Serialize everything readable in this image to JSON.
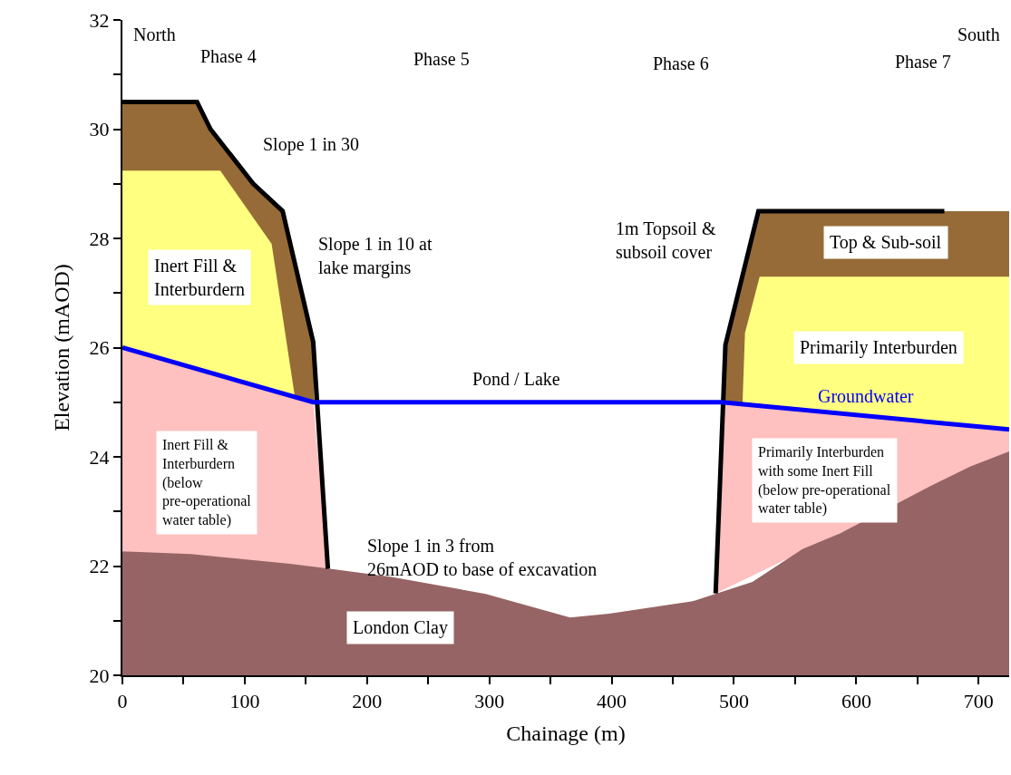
{
  "chart_data": {
    "type": "area",
    "xlabel": "Chainage (m)",
    "ylabel": "Elevation (mAOD)",
    "xlim": [
      0,
      725
    ],
    "ylim": [
      20,
      32
    ],
    "xticks": [
      0,
      {
        "value": 50,
        "label": null
      },
      100,
      {
        "value": 150,
        "label": null
      },
      200,
      {
        "value": 250,
        "label": null
      },
      300,
      {
        "value": 350,
        "label": null
      },
      400,
      {
        "value": 450,
        "label": null
      },
      500,
      {
        "value": 550,
        "label": null
      },
      600,
      {
        "value": 650,
        "label": null
      },
      700
    ],
    "yticks": [
      20,
      {
        "value": 21,
        "label": null
      },
      22,
      {
        "value": 23,
        "label": null
      },
      24,
      {
        "value": 25,
        "label": null
      },
      26,
      {
        "value": 27,
        "label": null
      },
      28,
      {
        "value": 29,
        "label": null
      },
      30,
      {
        "value": 31,
        "label": null
      },
      32
    ],
    "legend": false,
    "series": [
      {
        "color": "#966b38",
        "x": [
          0,
          61,
          72,
          107,
          131,
          156,
          157,
          0,
          0
        ],
        "values": [
          30.5,
          30.5,
          30.0,
          29.0,
          28.5,
          26.1,
          25.0,
          26.0,
          30.5
        ]
      },
      {
        "color": "#ffff80",
        "x": [
          0,
          80,
          122,
          141,
          0,
          0
        ],
        "values": [
          29.24,
          29.24,
          27.9,
          25.1,
          26.0,
          29.24
        ]
      },
      {
        "color": "#ffc0c0",
        "x": [
          0,
          156,
          168,
          0,
          0
        ],
        "values": [
          26.0,
          25.0,
          21.95,
          22.27,
          26.0
        ]
      },
      {
        "color": "#966b38",
        "x": [
          490,
          493,
          520,
          725,
          725,
          490
        ],
        "values": [
          25.0,
          26.05,
          28.5,
          28.5,
          24.5,
          25.0
        ]
      },
      {
        "color": "#ffff80",
        "x": [
          507,
          509,
          521,
          725,
          725,
          507
        ],
        "values": [
          25.0,
          26.27,
          27.3,
          27.3,
          24.5,
          25.0
        ]
      },
      {
        "color": "#ffc0c0",
        "x": [
          490,
          725,
          725,
          485,
          490
        ],
        "values": [
          25.0,
          24.5,
          24.1,
          21.5,
          25.0
        ]
      },
      {
        "color": "#966464",
        "x": [
          0,
          56,
          137,
          167,
          220,
          297,
          366,
          398,
          467,
          515,
          556,
          587,
          661,
          693,
          725
        ],
        "values": [
          22.27,
          22.22,
          22.04,
          21.96,
          21.8,
          21.49,
          21.06,
          21.13,
          21.36,
          21.71,
          22.31,
          22.6,
          23.47,
          23.82,
          24.1
        ]
      },
      {
        "type": "line",
        "color": "#000000",
        "x": [
          0,
          61,
          72,
          107,
          131,
          156,
          168
        ],
        "values": [
          30.5,
          30.5,
          30.0,
          29.0,
          28.5,
          26.1,
          21.95
        ]
      },
      {
        "type": "line",
        "color": "#000000",
        "x": [
          485,
          493,
          520,
          672
        ],
        "values": [
          21.5,
          26.05,
          28.5,
          28.5
        ]
      },
      {
        "type": "line",
        "name": "Groundwater",
        "color": "#0000ff",
        "x": [
          0,
          156,
          490,
          725
        ],
        "values": [
          26.0,
          25.0,
          25.0,
          24.5
        ]
      }
    ],
    "annotations": [
      "North",
      "Phase 4",
      "Phase 5",
      "Phase 6",
      "Phase 7",
      "South",
      "Slope 1 in 30",
      "Slope 1 in 10 at\nlake margins",
      "Inert Fill &\nInterburdern",
      "1m Topsoil &\nsubsoil cover",
      "Top & Sub-soil",
      "Primarily Interburden",
      "Pond / Lake",
      "Inert Fill &\nInterburdern\n(below\npre-operational\nwater table)",
      "Slope 1 in 3 from\n26mAOD to base of excavation",
      "Primarily Interburden\nwith some Inert Fill\n(below pre-operational\nwater table)",
      "London Clay"
    ]
  }
}
